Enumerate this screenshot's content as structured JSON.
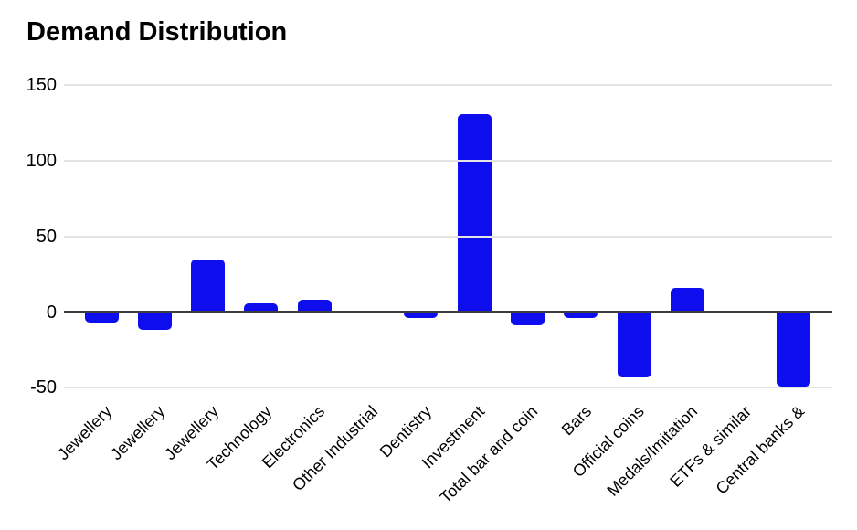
{
  "chart_data": {
    "type": "bar",
    "title": "Demand Distribution",
    "categories": [
      "Jewellery",
      "Jewellery",
      "Jewellery",
      "Technology",
      "Electronics",
      "Other Industrial",
      "Dentistry",
      "Investment",
      "Total bar and coin",
      "Bars",
      "Official coins",
      "Medals/Imitation",
      "ETFs & similar",
      "Central banks &"
    ],
    "values": [
      -7,
      -12,
      35,
      6,
      8,
      1,
      -4,
      131,
      -9,
      -4,
      -43,
      16,
      0,
      -49
    ],
    "y_ticks": [
      150,
      100,
      50,
      0,
      -50
    ],
    "ylim": [
      -60,
      160
    ],
    "xlabel": "",
    "ylabel": "",
    "grid": true,
    "legend": false,
    "bar_color": "#0d0dee",
    "gridline_color": "#e4e4e4",
    "axis_line_color": "#3d3d3d",
    "text_color": "#000000",
    "background_color": "#ffffff"
  }
}
